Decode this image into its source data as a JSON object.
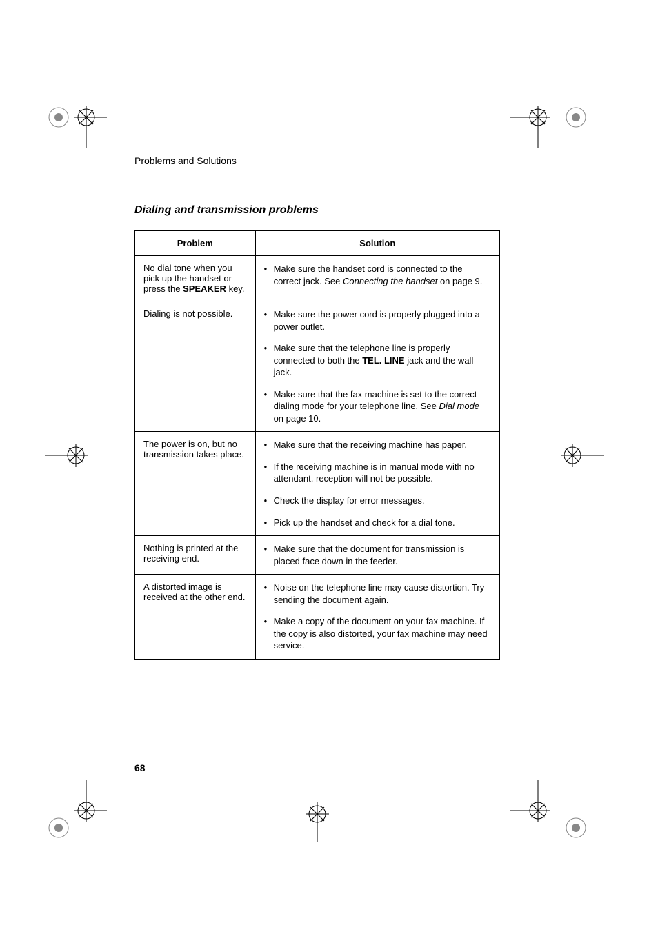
{
  "header": "Problems and Solutions",
  "section_title": "Dialing and transmission problems",
  "page_number": "68",
  "table": {
    "head": {
      "col1": "Problem",
      "col2": "Solution"
    },
    "rows": [
      {
        "problem_parts": [
          {
            "t": "No dial tone when you pick up the handset or press the "
          },
          {
            "t": "SPEAKER",
            "bold": true
          },
          {
            "t": " key."
          }
        ],
        "solutions": [
          [
            {
              "t": "Make sure the handset cord is connected to the correct jack. See "
            },
            {
              "t": "Connecting the handset",
              "italic": true
            },
            {
              "t": " on page 9."
            }
          ]
        ]
      },
      {
        "problem_parts": [
          {
            "t": "Dialing is not possible."
          }
        ],
        "solutions": [
          [
            {
              "t": "Make sure the power cord is properly plugged into a power outlet."
            }
          ],
          [
            {
              "t": "Make sure that the telephone line is properly connected to both the "
            },
            {
              "t": "TEL. LINE",
              "bold": true
            },
            {
              "t": " jack and the wall jack."
            }
          ],
          [
            {
              "t": "Make sure that the fax machine is set to the correct dialing mode for your telephone line. See "
            },
            {
              "t": "Dial mode",
              "italic": true
            },
            {
              "t": " on page 10."
            }
          ]
        ]
      },
      {
        "problem_parts": [
          {
            "t": "The power is on, but no transmission takes place."
          }
        ],
        "solutions": [
          [
            {
              "t": "Make sure that the receiving machine has paper."
            }
          ],
          [
            {
              "t": "If the receiving machine is in manual mode with no attendant, reception will not be possible."
            }
          ],
          [
            {
              "t": "Check the display for error messages."
            }
          ],
          [
            {
              "t": "Pick up the handset and check for a dial tone."
            }
          ]
        ]
      },
      {
        "problem_parts": [
          {
            "t": "Nothing is printed at the receiving end."
          }
        ],
        "solutions": [
          [
            {
              "t": "Make sure that the document for transmission is placed face down in the feeder."
            }
          ]
        ]
      },
      {
        "problem_parts": [
          {
            "t": "A distorted image is received at the other end."
          }
        ],
        "solutions": [
          [
            {
              "t": "Noise on the telephone line may cause distortion. Try sending the document again."
            }
          ],
          [
            {
              "t": "Make a copy of the document on your fax machine. If the copy is also distorted, your fax machine may need service."
            }
          ]
        ]
      }
    ]
  },
  "style": {
    "body_font_size": 13,
    "header_font_size": 14,
    "title_font_size": 16,
    "text_color": "#000000",
    "bg_color": "#ffffff",
    "border_color": "#000000"
  }
}
